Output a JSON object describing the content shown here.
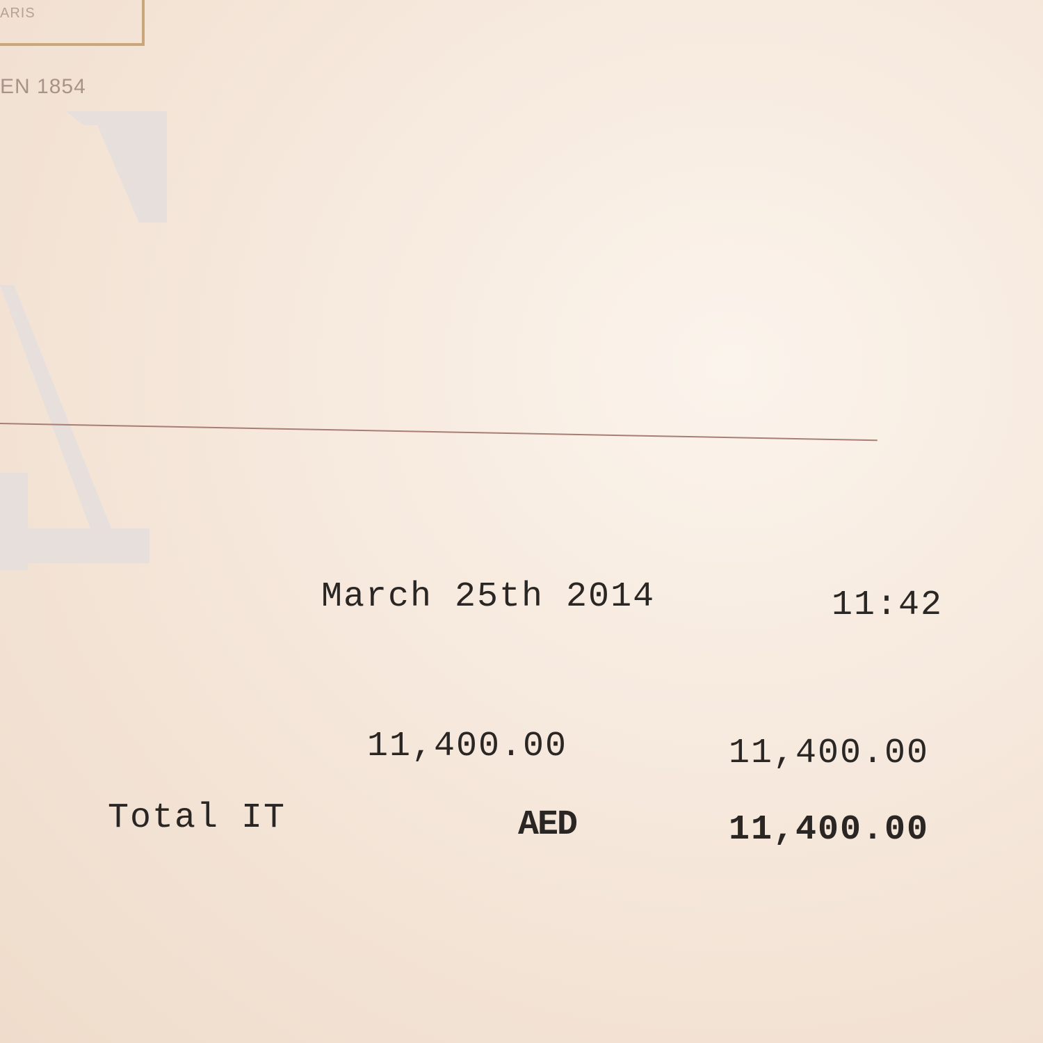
{
  "letterhead": {
    "logo_subtext": "ARIS",
    "established": "EN 1854",
    "watermark_letter": "A"
  },
  "receipt": {
    "date": "March 25th 2014",
    "time": "11:42",
    "line_amount": "11,400.00",
    "line_total": "11,400.00",
    "total_label": "Total IT",
    "currency": "AED",
    "grand_total": "11,400.00"
  },
  "colors": {
    "rule": "#a77d74",
    "logo_border": "#c9a77a"
  }
}
